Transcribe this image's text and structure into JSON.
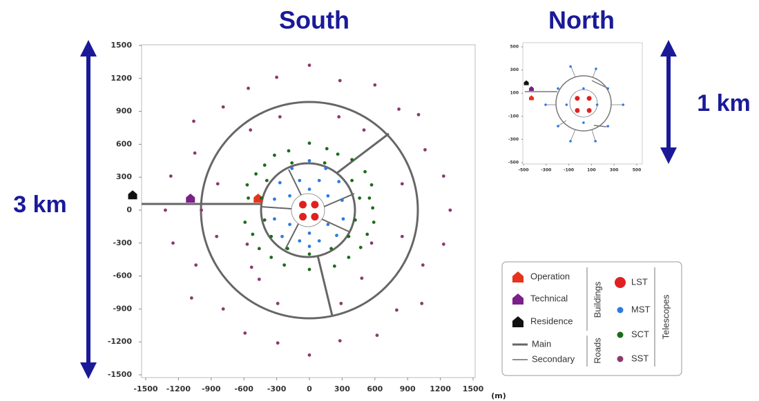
{
  "chart_data": [
    {
      "type": "scatter",
      "title": "South",
      "annotation": "3 km",
      "x_label": "(m)",
      "xlim": [
        -1500,
        1500
      ],
      "ylim": [
        -1500,
        1500
      ],
      "xticks": [
        -1500,
        -1200,
        -900,
        -600,
        -300,
        0,
        300,
        600,
        900,
        1200,
        1500
      ],
      "yticks": [
        -1500,
        -1200,
        -900,
        -600,
        -300,
        0,
        300,
        600,
        900,
        1200,
        1500
      ],
      "legend": {
        "buildings": "Buildings",
        "roads": "Roads",
        "telescopes": "Telescopes",
        "main": "Main",
        "secondary": "Secondary"
      },
      "series": [
        {
          "name": "Operation",
          "color": "#e8331c",
          "marker": "house",
          "x": [
            -470
          ],
          "y": [
            110
          ]
        },
        {
          "name": "Technical",
          "color": "#7b1f8a",
          "marker": "house",
          "x": [
            -1090
          ],
          "y": [
            110
          ]
        },
        {
          "name": "Residence",
          "color": "#111111",
          "marker": "house",
          "x": [
            -1620
          ],
          "y": [
            140
          ]
        },
        {
          "name": "LST",
          "color": "#e02020",
          "marker": "big-dot",
          "x": [
            -60,
            50,
            -60,
            50
          ],
          "y": [
            50,
            50,
            -60,
            -60
          ]
        },
        {
          "name": "MST",
          "color": "#2e7be0",
          "marker": "dot",
          "x": [
            0,
            -160,
            150,
            -270,
            270,
            -90,
            90,
            -320,
            300,
            -180,
            170,
            0,
            -320,
            310,
            -180,
            170,
            0,
            -250,
            250,
            -90,
            90,
            0
          ],
          "y": [
            450,
            380,
            380,
            250,
            260,
            270,
            270,
            100,
            90,
            130,
            130,
            190,
            -80,
            -80,
            -130,
            -130,
            -210,
            -240,
            -230,
            -280,
            -280,
            -330
          ]
        },
        {
          "name": "SCT",
          "color": "#1c6b1c",
          "marker": "dot",
          "x": [
            -320,
            -190,
            0,
            160,
            260,
            -410,
            390,
            -490,
            510,
            -570,
            570,
            -560,
            550,
            580,
            -590,
            590,
            -520,
            530,
            -460,
            470,
            -350,
            360,
            -230,
            230,
            0,
            -160,
            140,
            -390,
            390,
            -440,
            460,
            -410,
            420,
            -350,
            360,
            -200,
            200,
            0
          ],
          "y": [
            500,
            540,
            610,
            560,
            510,
            410,
            460,
            330,
            350,
            230,
            230,
            110,
            110,
            20,
            -110,
            -110,
            -220,
            -220,
            -350,
            -340,
            -430,
            -430,
            -500,
            -510,
            -540,
            430,
            430,
            270,
            270,
            110,
            110,
            -90,
            -90,
            -240,
            -240,
            -350,
            -350,
            -400
          ]
        },
        {
          "name": "SST",
          "color": "#8b3a6e",
          "marker": "dot",
          "x": [
            0,
            -300,
            280,
            -560,
            600,
            -790,
            820,
            1000,
            -1060,
            -540,
            500,
            -270,
            270,
            -1050,
            1060,
            -1270,
            1230,
            -840,
            850,
            -1320,
            1290,
            -990,
            -850,
            850,
            -1250,
            1230,
            -1040,
            1040,
            -1080,
            1030,
            -790,
            800,
            -290,
            290,
            -590,
            620,
            -290,
            280,
            0,
            -570,
            570,
            -530,
            480,
            -460
          ],
          "y": [
            1320,
            1210,
            1180,
            1110,
            1140,
            940,
            920,
            870,
            810,
            730,
            730,
            850,
            850,
            520,
            550,
            310,
            310,
            240,
            240,
            0,
            0,
            0,
            -240,
            -240,
            -300,
            -310,
            -500,
            -500,
            -800,
            -850,
            -900,
            -910,
            -850,
            -850,
            -1120,
            -1140,
            -1210,
            -1190,
            -1320,
            -310,
            -300,
            -520,
            -620,
            -630
          ]
        }
      ]
    },
    {
      "type": "scatter",
      "title": "North",
      "annotation": "1 km",
      "xlim": [
        -500,
        500
      ],
      "ylim": [
        -500,
        500
      ],
      "xticks": [
        -500,
        -300,
        -100,
        100,
        300,
        500
      ],
      "yticks": [
        -500,
        -300,
        -100,
        100,
        300,
        500
      ],
      "series": [
        {
          "color": "#e8331c",
          "marker": "house",
          "x": [
            -430
          ],
          "y": [
            60
          ]
        },
        {
          "color": "#7b1f8a",
          "marker": "house",
          "x": [
            -430
          ],
          "y": [
            140
          ]
        },
        {
          "color": "#111111",
          "marker": "house",
          "x": [
            -475
          ],
          "y": [
            190
          ]
        },
        {
          "color": "#e02020",
          "marker": "big-dot",
          "x": [
            -25,
            80,
            -25,
            80
          ],
          "y": [
            55,
            55,
            -50,
            -50
          ]
        },
        {
          "color": "#2e7be0",
          "marker": "dot",
          "x": [
            -85,
            140,
            -195,
            245,
            -305,
            380,
            -195,
            245,
            -85,
            135,
            -120,
            150,
            30,
            30
          ],
          "y": [
            330,
            310,
            140,
            140,
            0,
            0,
            -185,
            -185,
            -315,
            -315,
            0,
            0,
            140,
            -155
          ]
        }
      ]
    }
  ]
}
